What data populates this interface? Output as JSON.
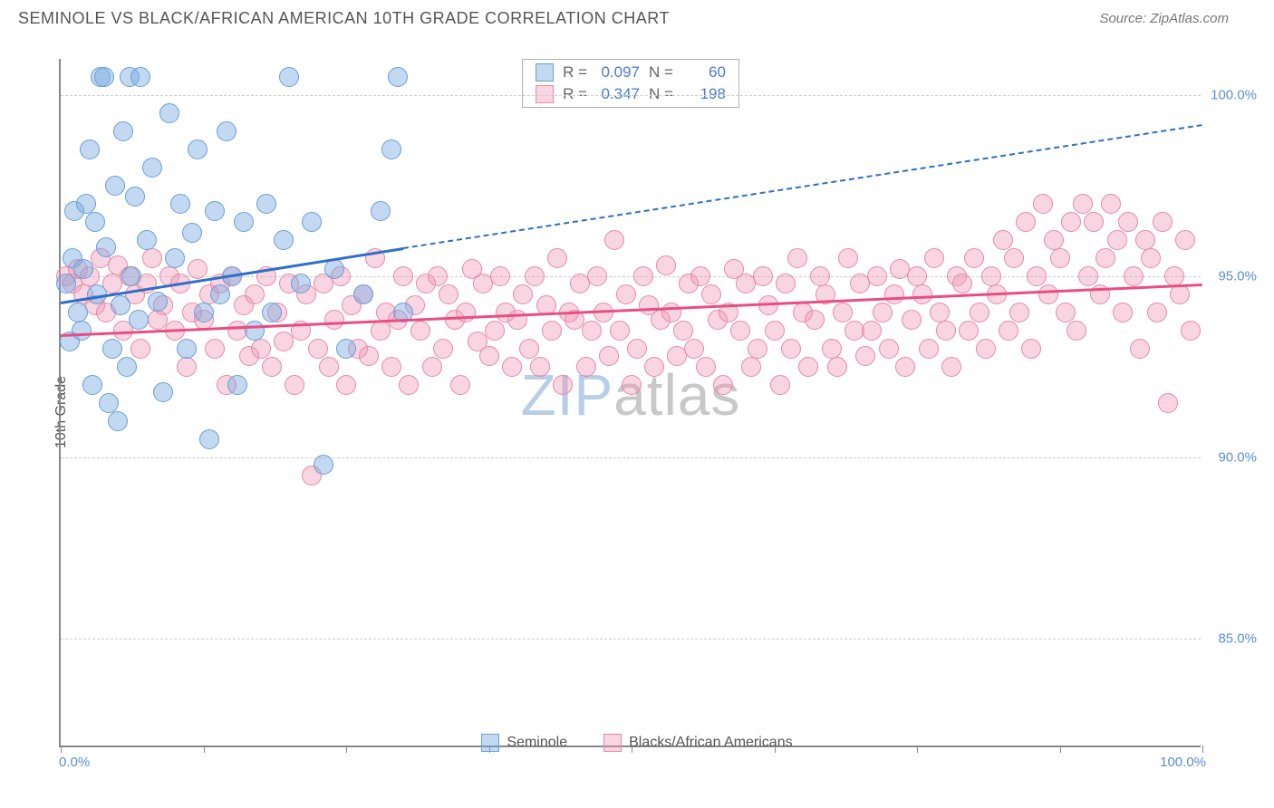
{
  "header": {
    "title": "SEMINOLE VS BLACK/AFRICAN AMERICAN 10TH GRADE CORRELATION CHART",
    "source": "Source: ZipAtlas.com"
  },
  "axes": {
    "ylabel": "10th Grade",
    "xlim": [
      0,
      100
    ],
    "ylim": [
      82,
      101
    ],
    "yticks": [
      85.0,
      90.0,
      95.0,
      100.0
    ],
    "ytick_labels": [
      "85.0%",
      "90.0%",
      "95.0%",
      "100.0%"
    ],
    "xticks": [
      0,
      12.5,
      25,
      37.5,
      50,
      62.5,
      75,
      87.5,
      100
    ],
    "xstart_label": "0.0%",
    "xend_label": "100.0%"
  },
  "colors": {
    "seminole_fill": "rgba(120,170,225,0.45)",
    "seminole_stroke": "#6a9ed8",
    "black_fill": "rgba(240,150,180,0.40)",
    "black_stroke": "#e589a8",
    "trend_blue": "#2f6fc9",
    "trend_pink": "#e94d82",
    "grid": "#cccccc",
    "axis": "#888888",
    "label_blue": "#5b8dd6",
    "text": "#555555"
  },
  "marker": {
    "radius": 11,
    "stroke_width": 1.5
  },
  "series": {
    "seminole": {
      "label": "Seminole",
      "R": "0.097",
      "N": "60",
      "trend": {
        "x1": 0,
        "y1": 94.3,
        "x2_solid": 30,
        "y2_solid": 95.8,
        "x2": 100,
        "y2": 99.2
      },
      "points": [
        [
          0.5,
          94.8
        ],
        [
          0.8,
          93.2
        ],
        [
          1.0,
          95.5
        ],
        [
          1.2,
          96.8
        ],
        [
          1.5,
          94.0
        ],
        [
          1.8,
          93.5
        ],
        [
          2.0,
          95.2
        ],
        [
          2.2,
          97.0
        ],
        [
          2.5,
          98.5
        ],
        [
          2.8,
          92.0
        ],
        [
          3.0,
          96.5
        ],
        [
          3.2,
          94.5
        ],
        [
          3.5,
          100.5
        ],
        [
          3.8,
          100.5
        ],
        [
          4.0,
          95.8
        ],
        [
          4.2,
          91.5
        ],
        [
          4.5,
          93.0
        ],
        [
          4.8,
          97.5
        ],
        [
          5.0,
          91.0
        ],
        [
          5.2,
          94.2
        ],
        [
          5.5,
          99.0
        ],
        [
          5.8,
          92.5
        ],
        [
          6.0,
          100.5
        ],
        [
          6.2,
          95.0
        ],
        [
          6.5,
          97.2
        ],
        [
          6.8,
          93.8
        ],
        [
          7.0,
          100.5
        ],
        [
          7.5,
          96.0
        ],
        [
          8.0,
          98.0
        ],
        [
          8.5,
          94.3
        ],
        [
          9.0,
          91.8
        ],
        [
          9.5,
          99.5
        ],
        [
          10.0,
          95.5
        ],
        [
          10.5,
          97.0
        ],
        [
          11.0,
          93.0
        ],
        [
          11.5,
          96.2
        ],
        [
          12.0,
          98.5
        ],
        [
          12.5,
          94.0
        ],
        [
          13.0,
          90.5
        ],
        [
          13.5,
          96.8
        ],
        [
          14.0,
          94.5
        ],
        [
          14.5,
          99.0
        ],
        [
          15.0,
          95.0
        ],
        [
          15.5,
          92.0
        ],
        [
          16.0,
          96.5
        ],
        [
          17.0,
          93.5
        ],
        [
          18.0,
          97.0
        ],
        [
          18.5,
          94.0
        ],
        [
          19.5,
          96.0
        ],
        [
          20.0,
          100.5
        ],
        [
          21.0,
          94.8
        ],
        [
          22.0,
          96.5
        ],
        [
          23.0,
          89.8
        ],
        [
          24.0,
          95.2
        ],
        [
          25.0,
          93.0
        ],
        [
          26.5,
          94.5
        ],
        [
          28.0,
          96.8
        ],
        [
          29.0,
          98.5
        ],
        [
          29.5,
          100.5
        ],
        [
          30.0,
          94.0
        ]
      ]
    },
    "black": {
      "label": "Blacks/African Americans",
      "R": "0.347",
      "N": "198",
      "trend": {
        "x1": 0,
        "y1": 93.4,
        "x2": 100,
        "y2": 94.8
      },
      "points": [
        [
          0.5,
          95.0
        ],
        [
          1.0,
          94.8
        ],
        [
          1.5,
          95.2
        ],
        [
          2.0,
          94.5
        ],
        [
          2.5,
          95.0
        ],
        [
          3.0,
          94.2
        ],
        [
          3.5,
          95.5
        ],
        [
          4.0,
          94.0
        ],
        [
          4.5,
          94.8
        ],
        [
          5.0,
          95.3
        ],
        [
          5.5,
          93.5
        ],
        [
          6.0,
          95.0
        ],
        [
          6.5,
          94.5
        ],
        [
          7.0,
          93.0
        ],
        [
          7.5,
          94.8
        ],
        [
          8.0,
          95.5
        ],
        [
          8.5,
          93.8
        ],
        [
          9.0,
          94.2
        ],
        [
          9.5,
          95.0
        ],
        [
          10.0,
          93.5
        ],
        [
          10.5,
          94.8
        ],
        [
          11.0,
          92.5
        ],
        [
          11.5,
          94.0
        ],
        [
          12.0,
          95.2
        ],
        [
          12.5,
          93.8
        ],
        [
          13.0,
          94.5
        ],
        [
          13.5,
          93.0
        ],
        [
          14.0,
          94.8
        ],
        [
          14.5,
          92.0
        ],
        [
          15.0,
          95.0
        ],
        [
          15.5,
          93.5
        ],
        [
          16.0,
          94.2
        ],
        [
          16.5,
          92.8
        ],
        [
          17.0,
          94.5
        ],
        [
          17.5,
          93.0
        ],
        [
          18.0,
          95.0
        ],
        [
          18.5,
          92.5
        ],
        [
          19.0,
          94.0
        ],
        [
          19.5,
          93.2
        ],
        [
          20.0,
          94.8
        ],
        [
          20.5,
          92.0
        ],
        [
          21.0,
          93.5
        ],
        [
          21.5,
          94.5
        ],
        [
          22.0,
          89.5
        ],
        [
          22.5,
          93.0
        ],
        [
          23.0,
          94.8
        ],
        [
          23.5,
          92.5
        ],
        [
          24.0,
          93.8
        ],
        [
          24.5,
          95.0
        ],
        [
          25.0,
          92.0
        ],
        [
          25.5,
          94.2
        ],
        [
          26.0,
          93.0
        ],
        [
          26.5,
          94.5
        ],
        [
          27.0,
          92.8
        ],
        [
          27.5,
          95.5
        ],
        [
          28.0,
          93.5
        ],
        [
          28.5,
          94.0
        ],
        [
          29.0,
          92.5
        ],
        [
          29.5,
          93.8
        ],
        [
          30.0,
          95.0
        ],
        [
          30.5,
          92.0
        ],
        [
          31.0,
          94.2
        ],
        [
          31.5,
          93.5
        ],
        [
          32.0,
          94.8
        ],
        [
          32.5,
          92.5
        ],
        [
          33.0,
          95.0
        ],
        [
          33.5,
          93.0
        ],
        [
          34.0,
          94.5
        ],
        [
          34.5,
          93.8
        ],
        [
          35.0,
          92.0
        ],
        [
          35.5,
          94.0
        ],
        [
          36.0,
          95.2
        ],
        [
          36.5,
          93.2
        ],
        [
          37.0,
          94.8
        ],
        [
          37.5,
          92.8
        ],
        [
          38.0,
          93.5
        ],
        [
          38.5,
          95.0
        ],
        [
          39.0,
          94.0
        ],
        [
          39.5,
          92.5
        ],
        [
          40.0,
          93.8
        ],
        [
          40.5,
          94.5
        ],
        [
          41.0,
          93.0
        ],
        [
          41.5,
          95.0
        ],
        [
          42.0,
          92.5
        ],
        [
          42.5,
          94.2
        ],
        [
          43.0,
          93.5
        ],
        [
          43.5,
          95.5
        ],
        [
          44.0,
          92.0
        ],
        [
          44.5,
          94.0
        ],
        [
          45.0,
          93.8
        ],
        [
          45.5,
          94.8
        ],
        [
          46.0,
          92.5
        ],
        [
          46.5,
          93.5
        ],
        [
          47.0,
          95.0
        ],
        [
          47.5,
          94.0
        ],
        [
          48.0,
          92.8
        ],
        [
          48.5,
          96.0
        ],
        [
          49.0,
          93.5
        ],
        [
          49.5,
          94.5
        ],
        [
          50.0,
          92.0
        ],
        [
          50.5,
          93.0
        ],
        [
          51.0,
          95.0
        ],
        [
          51.5,
          94.2
        ],
        [
          52.0,
          92.5
        ],
        [
          52.5,
          93.8
        ],
        [
          53.0,
          95.3
        ],
        [
          53.5,
          94.0
        ],
        [
          54.0,
          92.8
        ],
        [
          54.5,
          93.5
        ],
        [
          55.0,
          94.8
        ],
        [
          55.5,
          93.0
        ],
        [
          56.0,
          95.0
        ],
        [
          56.5,
          92.5
        ],
        [
          57.0,
          94.5
        ],
        [
          57.5,
          93.8
        ],
        [
          58.0,
          92.0
        ],
        [
          58.5,
          94.0
        ],
        [
          59.0,
          95.2
        ],
        [
          59.5,
          93.5
        ],
        [
          60.0,
          94.8
        ],
        [
          60.5,
          92.5
        ],
        [
          61.0,
          93.0
        ],
        [
          61.5,
          95.0
        ],
        [
          62.0,
          94.2
        ],
        [
          62.5,
          93.5
        ],
        [
          63.0,
          92.0
        ],
        [
          63.5,
          94.8
        ],
        [
          64.0,
          93.0
        ],
        [
          64.5,
          95.5
        ],
        [
          65.0,
          94.0
        ],
        [
          65.5,
          92.5
        ],
        [
          66.0,
          93.8
        ],
        [
          66.5,
          95.0
        ],
        [
          67.0,
          94.5
        ],
        [
          67.5,
          93.0
        ],
        [
          68.0,
          92.5
        ],
        [
          68.5,
          94.0
        ],
        [
          69.0,
          95.5
        ],
        [
          69.5,
          93.5
        ],
        [
          70.0,
          94.8
        ],
        [
          70.5,
          92.8
        ],
        [
          71.0,
          93.5
        ],
        [
          71.5,
          95.0
        ],
        [
          72.0,
          94.0
        ],
        [
          72.5,
          93.0
        ],
        [
          73.0,
          94.5
        ],
        [
          73.5,
          95.2
        ],
        [
          74.0,
          92.5
        ],
        [
          74.5,
          93.8
        ],
        [
          75.0,
          95.0
        ],
        [
          75.5,
          94.5
        ],
        [
          76.0,
          93.0
        ],
        [
          76.5,
          95.5
        ],
        [
          77.0,
          94.0
        ],
        [
          77.5,
          93.5
        ],
        [
          78.0,
          92.5
        ],
        [
          78.5,
          95.0
        ],
        [
          79.0,
          94.8
        ],
        [
          79.5,
          93.5
        ],
        [
          80.0,
          95.5
        ],
        [
          80.5,
          94.0
        ],
        [
          81.0,
          93.0
        ],
        [
          81.5,
          95.0
        ],
        [
          82.0,
          94.5
        ],
        [
          82.5,
          96.0
        ],
        [
          83.0,
          93.5
        ],
        [
          83.5,
          95.5
        ],
        [
          84.0,
          94.0
        ],
        [
          84.5,
          96.5
        ],
        [
          85.0,
          93.0
        ],
        [
          85.5,
          95.0
        ],
        [
          86.0,
          97.0
        ],
        [
          86.5,
          94.5
        ],
        [
          87.0,
          96.0
        ],
        [
          87.5,
          95.5
        ],
        [
          88.0,
          94.0
        ],
        [
          88.5,
          96.5
        ],
        [
          89.0,
          93.5
        ],
        [
          89.5,
          97.0
        ],
        [
          90.0,
          95.0
        ],
        [
          90.5,
          96.5
        ],
        [
          91.0,
          94.5
        ],
        [
          91.5,
          95.5
        ],
        [
          92.0,
          97.0
        ],
        [
          92.5,
          96.0
        ],
        [
          93.0,
          94.0
        ],
        [
          93.5,
          96.5
        ],
        [
          94.0,
          95.0
        ],
        [
          94.5,
          93.0
        ],
        [
          95.0,
          96.0
        ],
        [
          95.5,
          95.5
        ],
        [
          96.0,
          94.0
        ],
        [
          96.5,
          96.5
        ],
        [
          97.0,
          91.5
        ],
        [
          97.5,
          95.0
        ],
        [
          98.0,
          94.5
        ],
        [
          98.5,
          96.0
        ],
        [
          99.0,
          93.5
        ]
      ]
    }
  },
  "watermark": {
    "part1": "ZIP",
    "part2": "atlas"
  },
  "legend_top": {
    "rlabel": "R =",
    "nlabel": "N ="
  }
}
